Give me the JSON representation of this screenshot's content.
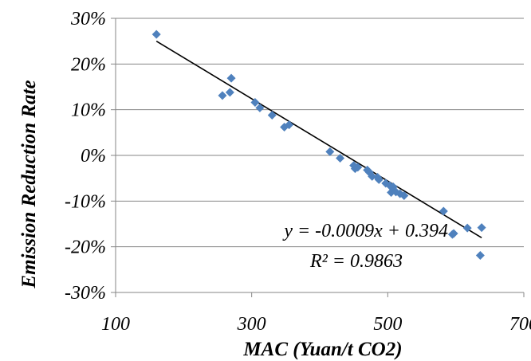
{
  "chart_data": {
    "type": "scatter",
    "title": "",
    "xlabel": "MAC (Yuan/t CO2)",
    "ylabel": "Emission Reduction Rate",
    "xlim": [
      100,
      700
    ],
    "ylim": [
      -0.3,
      0.3
    ],
    "x_ticks": [
      100,
      300,
      500,
      700
    ],
    "x_tick_labels": [
      "100",
      "300",
      "500",
      "700"
    ],
    "y_ticks": [
      0.3,
      0.2,
      0.1,
      0.0,
      -0.1,
      -0.2,
      -0.3
    ],
    "y_tick_labels": [
      "30%",
      "20%",
      "10%",
      "0%",
      "-10%",
      "-20%",
      "-30%"
    ],
    "grid": "horizontal",
    "legend": "none",
    "marker_color": "#4F81BD",
    "trendline_color": "#000000",
    "series": [
      {
        "points": [
          [
            160,
            0.265
          ],
          [
            257,
            0.131
          ],
          [
            268,
            0.138
          ],
          [
            270,
            0.169
          ],
          [
            305,
            0.116
          ],
          [
            312,
            0.104
          ],
          [
            330,
            0.088
          ],
          [
            348,
            0.062
          ],
          [
            355,
            0.067
          ],
          [
            415,
            0.008
          ],
          [
            430,
            -0.006
          ],
          [
            450,
            -0.022
          ],
          [
            452,
            -0.029
          ],
          [
            456,
            -0.026
          ],
          [
            470,
            -0.032
          ],
          [
            473,
            -0.037
          ],
          [
            477,
            -0.046
          ],
          [
            485,
            -0.048
          ],
          [
            487,
            -0.053
          ],
          [
            497,
            -0.061
          ],
          [
            503,
            -0.066
          ],
          [
            505,
            -0.081
          ],
          [
            508,
            -0.069
          ],
          [
            512,
            -0.08
          ],
          [
            518,
            -0.084
          ],
          [
            524,
            -0.088
          ],
          [
            582,
            -0.122
          ],
          [
            595,
            -0.173
          ],
          [
            597,
            -0.171
          ],
          [
            617,
            -0.159
          ],
          [
            636,
            -0.219
          ],
          [
            638,
            -0.158
          ]
        ]
      }
    ],
    "trendline": {
      "slope": -0.0009,
      "intercept": 0.394,
      "x_range": [
        160,
        638
      ],
      "equation": "y = -0.0009x + 0.394",
      "r_squared": "R² = 0.9863"
    }
  }
}
